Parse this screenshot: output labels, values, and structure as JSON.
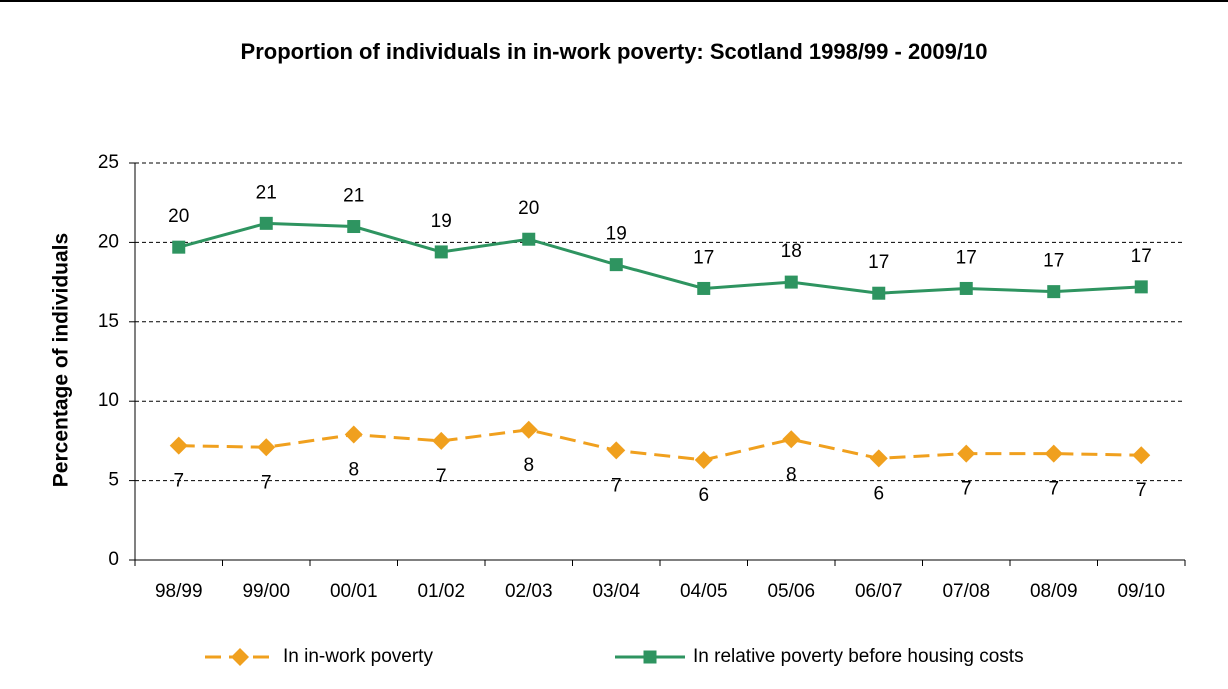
{
  "chart_data": {
    "type": "line",
    "title": "Proportion of individuals in in-work poverty: Scotland 1998/99 - 2009/10",
    "y_label": "Percentage of individuals",
    "categories": [
      "98/99",
      "99/00",
      "00/01",
      "01/02",
      "02/03",
      "03/04",
      "04/05",
      "05/06",
      "06/07",
      "07/08",
      "08/09",
      "09/10"
    ],
    "series": [
      {
        "name": "In in-work poverty",
        "color": "#f0a01e",
        "dash": true,
        "marker": "diamond",
        "label_pos": "below",
        "values": [
          7.2,
          7.1,
          7.9,
          7.5,
          8.2,
          6.9,
          6.3,
          7.6,
          6.4,
          6.7,
          6.7,
          6.6
        ],
        "value_labels": [
          "7",
          "7",
          "8",
          "7",
          "8",
          "7",
          "6",
          "8",
          "6",
          "7",
          "7",
          "7"
        ]
      },
      {
        "name": "In relative poverty before housing costs",
        "color": "#2e9460",
        "dash": false,
        "marker": "square",
        "label_pos": "above",
        "values": [
          19.7,
          21.2,
          21.0,
          19.4,
          20.2,
          18.6,
          17.1,
          17.5,
          16.8,
          17.1,
          16.9,
          17.2
        ],
        "value_labels": [
          "20",
          "21",
          "21",
          "19",
          "20",
          "19",
          "17",
          "18",
          "17",
          "17",
          "17",
          "17"
        ]
      }
    ],
    "ylim": [
      0,
      25
    ],
    "yticks": [
      0,
      5,
      10,
      15,
      20,
      25
    ],
    "grid": true,
    "legend": "bottom"
  }
}
